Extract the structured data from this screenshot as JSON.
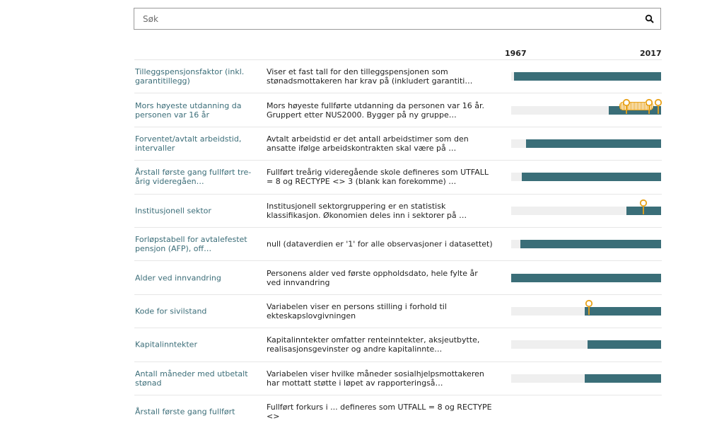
{
  "search": {
    "placeholder": "Søk",
    "icon": "search-icon"
  },
  "timeline_header": {
    "start_year": "1967",
    "end_year": "2017"
  },
  "colors": {
    "bar": "#3a6e78",
    "track": "#efefef",
    "marker": "#e8a21a",
    "link": "#3b6d78"
  },
  "variables": [
    {
      "name": "Tilleggspensjonsfaktor (inkl. garantitillegg)",
      "description": "Viser et fast tall for den tilleggspensjonen som stønadsmottakeren har krav på (inkludert garantiti…",
      "coverage": [
        0.02,
        1.0
      ],
      "markers": []
    },
    {
      "name": "Mors høyeste utdanning da personen var 16 år",
      "description": "Mors høyeste fullførte utdanning da personen var 16 år. Gruppert etter NUS2000. Bygger på ny gruppe…",
      "coverage": [
        0.65,
        1.0
      ],
      "markers": [
        0.77,
        0.92,
        0.98
      ],
      "dense_markers": [
        0.72,
        0.95
      ]
    },
    {
      "name": "Forventet/avtalt arbeidstid, intervaller",
      "description": "Avtalt arbeidstid er det antall arbeidstimer som den ansatte ifølge arbeidskontrakten skal være på …",
      "coverage": [
        0.1,
        1.0
      ],
      "markers": []
    },
    {
      "name": "Årstall første gang fullført tre-årig videregåen…",
      "description": "Fullført treårig videregående skole defineres som UTFALL = 8 og RECTYPE <> 3 (blank kan forekomme) …",
      "coverage": [
        0.07,
        1.0
      ],
      "markers": []
    },
    {
      "name": "Institusjonell sektor",
      "description": "Institusjonell sektorgruppering er en statistisk klassifikasjon. Økonomien deles inn i sektorer på …",
      "coverage": [
        0.77,
        1.0
      ],
      "markers": [
        0.88
      ]
    },
    {
      "name": "Forløpstabell for avtalefestet pensjon (AFP), off…",
      "description": "null (dataverdien er '1' for alle observasjoner i datasettet)",
      "coverage": [
        0.06,
        1.0
      ],
      "markers": []
    },
    {
      "name": "Alder ved innvandring",
      "description": "Personens alder ved første oppholdsdato, hele fylte år ved innvandring",
      "coverage": [
        0.0,
        1.0
      ],
      "markers": []
    },
    {
      "name": "Kode for sivilstand",
      "description": "Variabelen viser en persons stilling i forhold til ekteskapslovgivningen",
      "coverage": [
        0.49,
        1.0
      ],
      "markers": [
        0.52
      ]
    },
    {
      "name": "Kapitalinntekter",
      "description": "Kapitalinntekter omfatter renteinntekter, aksjeutbytte, realisasjonsgevinster og andre kapitalinnte…",
      "coverage": [
        0.51,
        1.0
      ],
      "markers": []
    },
    {
      "name": "Antall måneder med utbetalt stønad",
      "description": "Variabelen viser hvilke måneder sosialhjelpsmottakeren har mottatt støtte i løpet av rapporteringså…",
      "coverage": [
        0.49,
        1.0
      ],
      "markers": []
    },
    {
      "name": "Årstall første gang fullført",
      "description": "Fullført forkurs i ... defineres som UTFALL = 8 og RECTYPE <>",
      "coverage": [
        0.0,
        0.0
      ],
      "markers": []
    }
  ]
}
